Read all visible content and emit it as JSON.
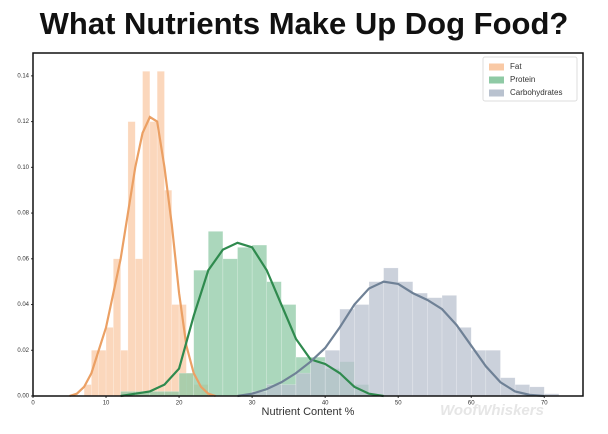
{
  "chart_data": {
    "type": "histogram",
    "title": "What Nutrients Make Up Dog Food?",
    "x_label": "Nutrient Content %",
    "watermark": "WoofWhiskers",
    "xlim": [
      0,
      75.3
    ],
    "ylim": [
      0,
      0.15
    ],
    "xticks": [
      0,
      10,
      20,
      30,
      40,
      50,
      60,
      70
    ],
    "yticks": [
      {
        "value": 0,
        "label": "0.00"
      },
      {
        "value": 0.02,
        "label": "0.02"
      },
      {
        "value": 0.04,
        "label": "0.04"
      },
      {
        "value": 0.06,
        "label": "0.06"
      },
      {
        "value": 0.08,
        "label": "0.08"
      },
      {
        "value": 0.1,
        "label": "0.10"
      },
      {
        "value": 0.12,
        "label": "0.12"
      },
      {
        "value": 0.14,
        "label": "0.14"
      }
    ],
    "legend": "upper right",
    "series": [
      {
        "name": "Fat",
        "color": "#f9c9a5",
        "line_color": "#eba064",
        "bins": [
          7,
          8,
          9,
          10,
          11,
          12,
          13,
          14,
          15,
          16,
          17,
          18,
          19,
          20,
          21,
          22,
          23,
          24
        ],
        "values": [
          0.005,
          0.02,
          0.02,
          0.03,
          0.06,
          0.02,
          0.12,
          0.06,
          0.142,
          0.12,
          0.142,
          0.09,
          0.04,
          0.04,
          0.01,
          0.005,
          0.005
        ],
        "kde_x": [
          5,
          6,
          7,
          8,
          9,
          10,
          11,
          12,
          13,
          14,
          15,
          16,
          17,
          18,
          19,
          20,
          21,
          22,
          23,
          24,
          25
        ],
        "kde_y": [
          0,
          0.001,
          0.004,
          0.01,
          0.02,
          0.03,
          0.045,
          0.06,
          0.08,
          0.1,
          0.115,
          0.122,
          0.12,
          0.1,
          0.075,
          0.045,
          0.022,
          0.01,
          0.004,
          0.001,
          0
        ]
      },
      {
        "name": "Protein",
        "color": "#8fcaa5",
        "line_color": "#2f8a4e",
        "bins": [
          12,
          14,
          16,
          18,
          20,
          22,
          24,
          26,
          28,
          30,
          32,
          34,
          36,
          38,
          40,
          42,
          44,
          46
        ],
        "values": [
          0.002,
          0.002,
          0.002,
          0.002,
          0.01,
          0.055,
          0.072,
          0.06,
          0.065,
          0.066,
          0.05,
          0.04,
          0.017,
          0.017,
          0.012,
          0.015,
          0.005
        ],
        "kde_x": [
          12,
          14,
          16,
          18,
          20,
          22,
          24,
          26,
          28,
          30,
          32,
          34,
          36,
          38,
          40,
          42,
          44,
          46,
          48
        ],
        "kde_y": [
          0,
          0.001,
          0.002,
          0.005,
          0.012,
          0.035,
          0.055,
          0.064,
          0.067,
          0.065,
          0.055,
          0.04,
          0.025,
          0.016,
          0.014,
          0.01,
          0.004,
          0.001,
          0
        ]
      },
      {
        "name": "Carbohydrates",
        "color": "#b9c2cf",
        "line_color": "#6f8196",
        "bins": [
          30,
          32,
          34,
          36,
          38,
          40,
          42,
          44,
          46,
          48,
          50,
          52,
          54,
          56,
          58,
          60,
          62,
          64,
          66,
          68,
          70,
          72
        ],
        "values": [
          0.002,
          0.005,
          0.005,
          0.01,
          0.015,
          0.02,
          0.038,
          0.04,
          0.05,
          0.056,
          0.05,
          0.045,
          0.043,
          0.044,
          0.03,
          0.02,
          0.02,
          0.008,
          0.005,
          0.004,
          0.001
        ],
        "kde_x": [
          28,
          30,
          32,
          34,
          36,
          38,
          40,
          42,
          44,
          46,
          48,
          50,
          52,
          54,
          56,
          58,
          60,
          62,
          64,
          66,
          68,
          70
        ],
        "kde_y": [
          0,
          0.001,
          0.003,
          0.006,
          0.01,
          0.015,
          0.021,
          0.03,
          0.04,
          0.047,
          0.05,
          0.049,
          0.045,
          0.042,
          0.038,
          0.031,
          0.022,
          0.013,
          0.006,
          0.002,
          0.0005,
          0
        ]
      }
    ]
  }
}
